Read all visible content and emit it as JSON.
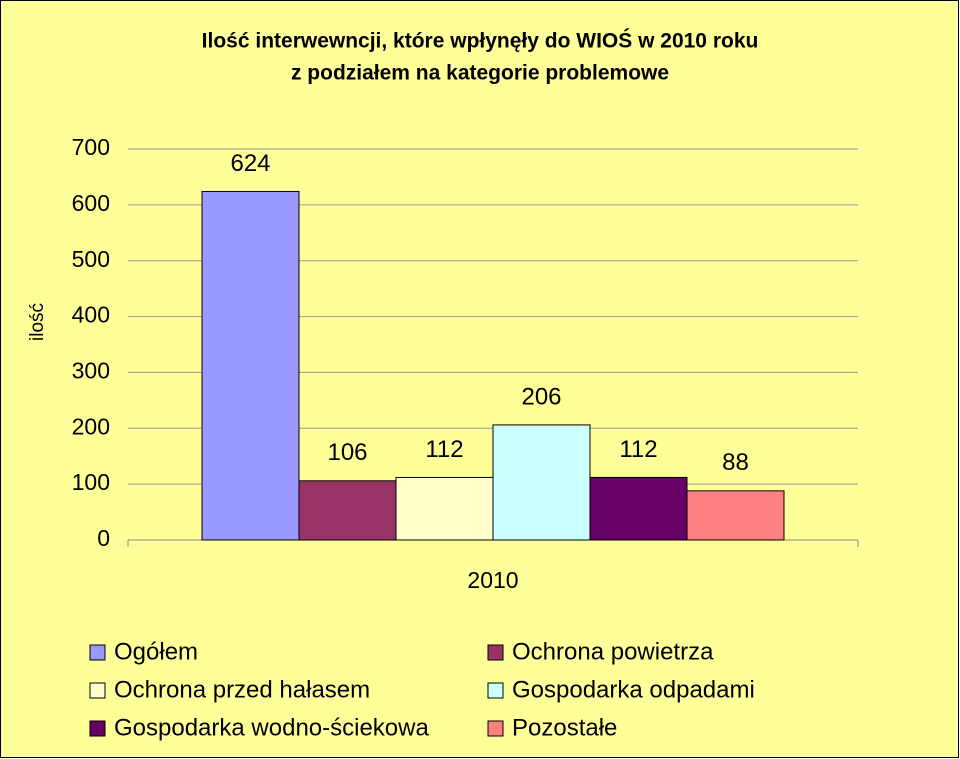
{
  "chart_data": {
    "type": "bar",
    "title": [
      "Ilość interwewncji, które wpłynęły do WIOŚ w 2010 roku",
      "z podziałem na kategorie problemowe"
    ],
    "y_label": "ilość",
    "categories": [
      "2010"
    ],
    "series": [
      {
        "name": "Ogółem",
        "color": "#9999FF",
        "values": [
          624
        ]
      },
      {
        "name": "Ochrona powietrza",
        "color": "#993366",
        "values": [
          106
        ]
      },
      {
        "name": "Ochrona przed hałasem",
        "color": "#FFFFCC",
        "values": [
          112
        ]
      },
      {
        "name": "Gospodarka odpadami",
        "color": "#CCFFFF",
        "values": [
          206
        ]
      },
      {
        "name": "Gospodarka wodno-ściekowa",
        "color": "#660066",
        "values": [
          112
        ]
      },
      {
        "name": "Pozostałe",
        "color": "#FF8080",
        "values": [
          88
        ]
      }
    ],
    "ylim": [
      0,
      700
    ],
    "yticks": [
      0,
      100,
      200,
      300,
      400,
      500,
      600,
      700
    ],
    "grid": true,
    "legend": "bottom"
  }
}
